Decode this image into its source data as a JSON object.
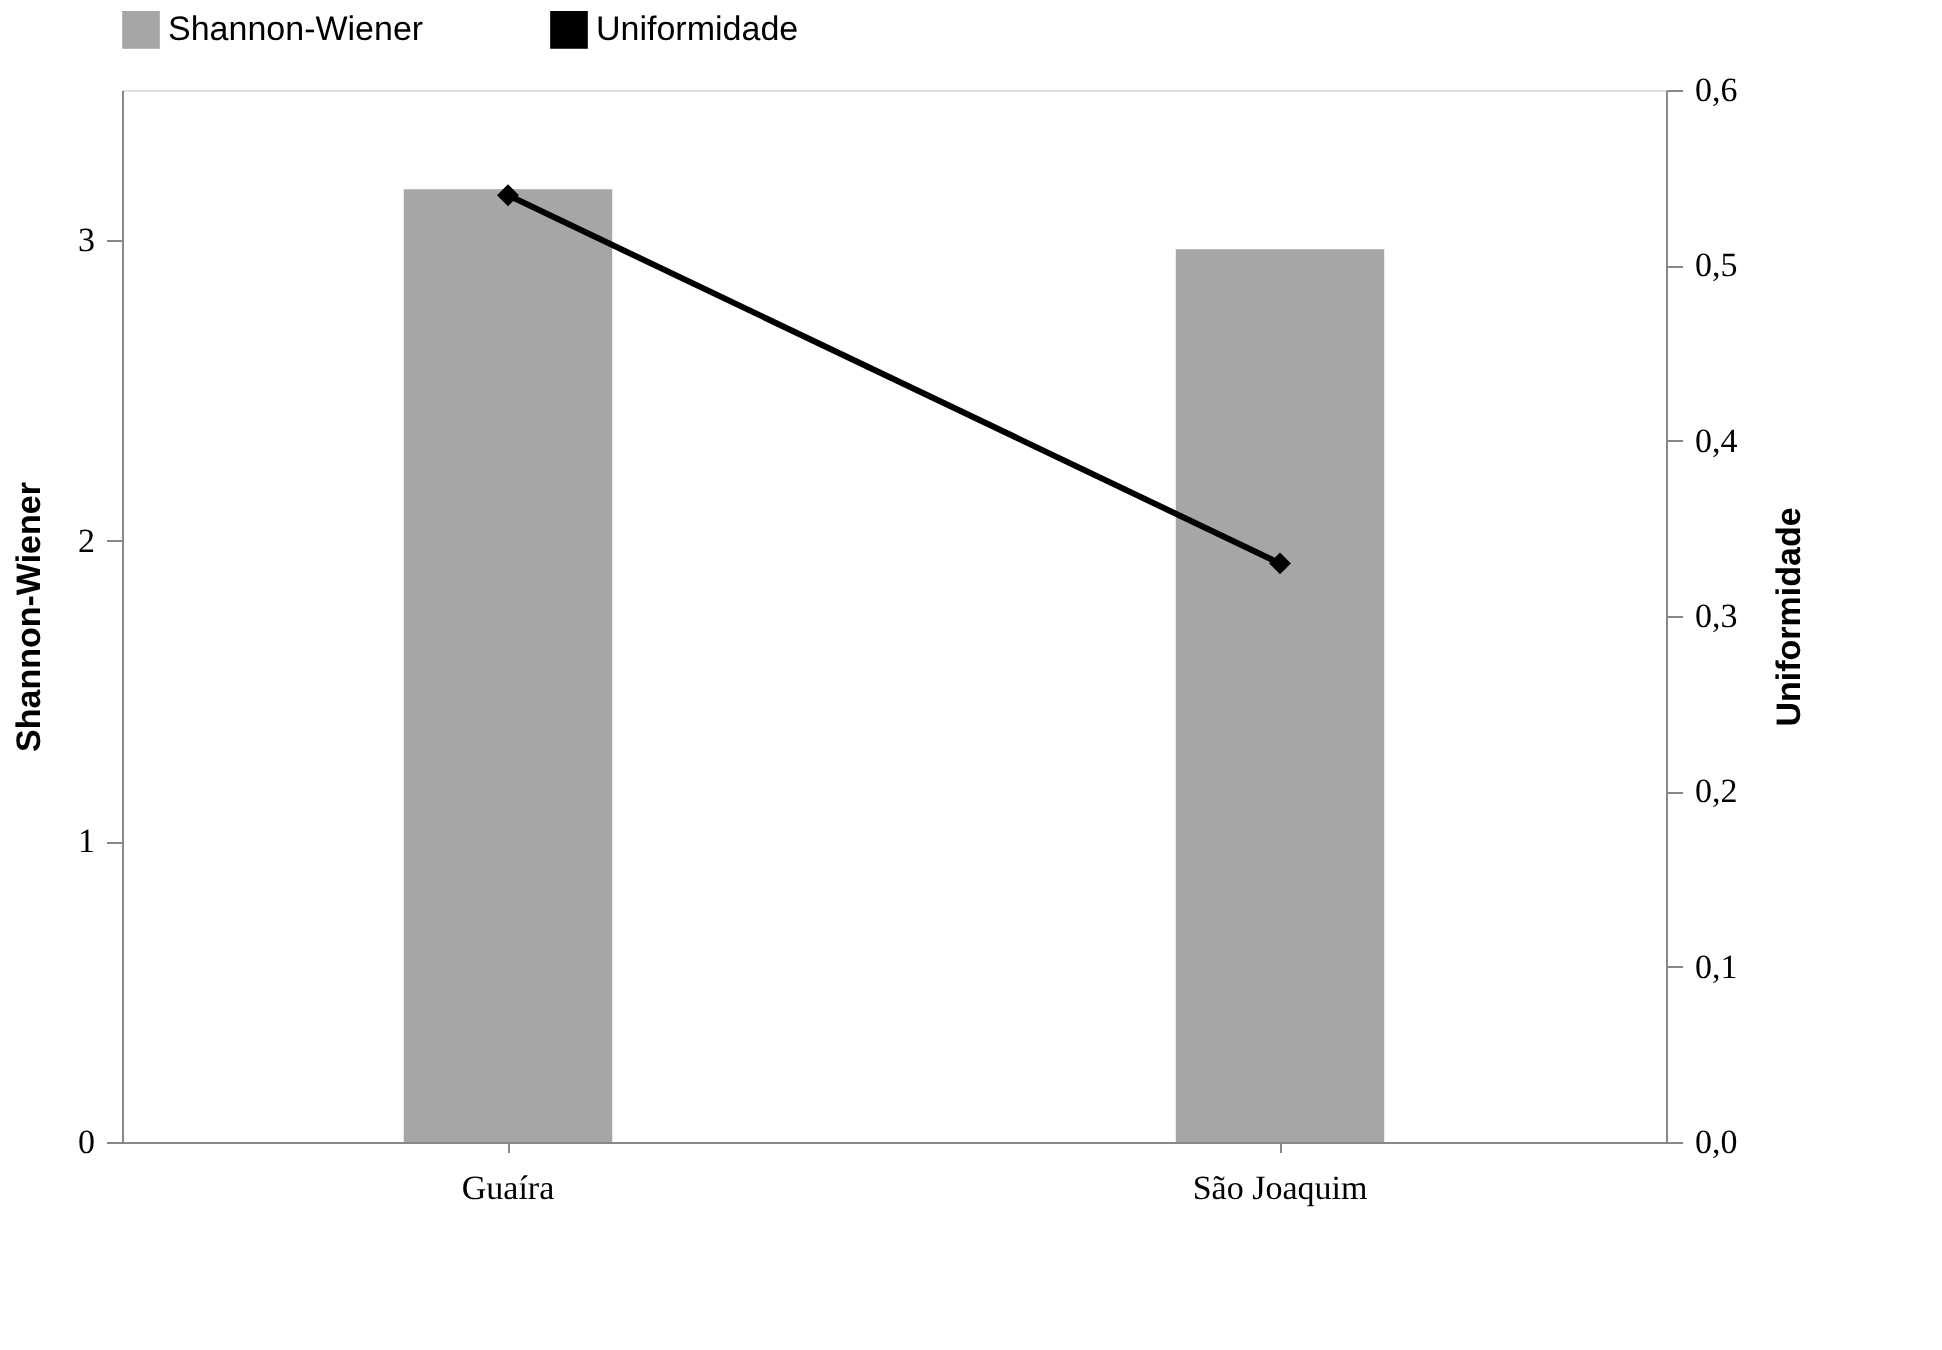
{
  "chart_data": {
    "type": "bar",
    "categories": [
      "Guaíra",
      "São Joaquim"
    ],
    "series": [
      {
        "name": "Shannon-Wiener",
        "color": "#a6a6a6",
        "values": [
          3.17,
          2.97
        ]
      },
      {
        "name": "Uniformidade",
        "type": "line",
        "axis": "y2",
        "color": "#000000",
        "marker": "diamond",
        "values": [
          0.54,
          0.33
        ]
      }
    ],
    "ylabel": "Shannon-Wiener",
    "y2label": "Uniformidade",
    "ylim": [
      0,
      3.5
    ],
    "yticks": [
      0,
      1,
      2,
      3
    ],
    "y2lim": [
      0,
      0.6
    ],
    "y2ticks": [
      {
        "value": 0,
        "label": "0,0"
      },
      {
        "value": 0.1,
        "label": "0,1"
      },
      {
        "value": 0.2,
        "label": "0,2"
      },
      {
        "value": 0.3,
        "label": "0,3"
      },
      {
        "value": 0.4,
        "label": "0,4"
      },
      {
        "value": 0.5,
        "label": "0,5"
      },
      {
        "value": 0.6,
        "label": "0,6"
      }
    ],
    "grid": false,
    "legend": "top"
  }
}
